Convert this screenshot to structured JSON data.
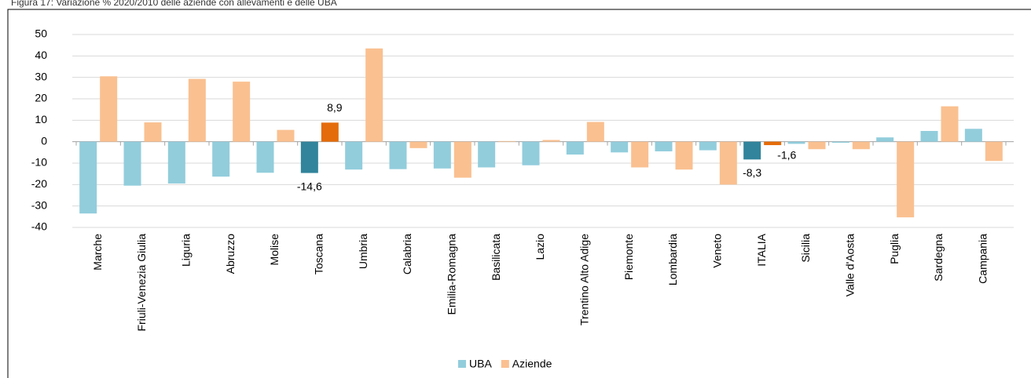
{
  "chart_data": {
    "type": "bar",
    "title": "Figura 17: Variazione % 2020/2010 delle aziende con allevamenti e delle UBA",
    "categories": [
      "Marche",
      "Friuli-Venezia Giulia",
      "Liguria",
      "Abruzzo",
      "Molise",
      "Toscana",
      "Umbria",
      "Calabria",
      "Emilia-Romagna",
      "Basilicata",
      "Lazio",
      "Trentino Alto Adige",
      "Piemonte",
      "Lombardia",
      "Veneto",
      "ITALIA",
      "Sicilia",
      "Valle d'Aosta",
      "Puglia",
      "Sardegna",
      "Campania"
    ],
    "series": [
      {
        "name": "UBA",
        "color": "#92cddc",
        "colors": [
          "#92cddc",
          "#92cddc",
          "#92cddc",
          "#92cddc",
          "#92cddc",
          "#31849b",
          "#92cddc",
          "#92cddc",
          "#92cddc",
          "#92cddc",
          "#92cddc",
          "#92cddc",
          "#92cddc",
          "#92cddc",
          "#92cddc",
          "#31849b",
          "#92cddc",
          "#92cddc",
          "#92cddc",
          "#92cddc",
          "#92cddc"
        ],
        "values": [
          -33.5,
          -20.5,
          -19.5,
          -16.3,
          -14.5,
          -14.6,
          -13,
          -12.8,
          -12.5,
          -12,
          -11,
          -6,
          -5,
          -4.5,
          -4,
          -8.3,
          -1,
          -0.5,
          2,
          5,
          6
        ],
        "value_labels": [
          null,
          null,
          null,
          null,
          null,
          "-14,6",
          null,
          null,
          null,
          null,
          null,
          null,
          null,
          null,
          null,
          "-8,3",
          null,
          null,
          null,
          null,
          null
        ]
      },
      {
        "name": "Aziende",
        "color": "#fac090",
        "colors": [
          "#fac090",
          "#fac090",
          "#fac090",
          "#fac090",
          "#fac090",
          "#e46c0a",
          "#fac090",
          "#fac090",
          "#fac090",
          "#fac090",
          "#fac090",
          "#fac090",
          "#fac090",
          "#fac090",
          "#fac090",
          "#e46c0a",
          "#fac090",
          "#fac090",
          "#fac090",
          "#fac090",
          "#fac090"
        ],
        "values": [
          30.5,
          9,
          29.3,
          28,
          5.5,
          8.9,
          43.5,
          -3,
          -16.8,
          0.3,
          0.8,
          9.2,
          -12,
          -13,
          -20,
          -1.6,
          -3.5,
          -3.5,
          -35.3,
          16.5,
          -9
        ],
        "value_labels": [
          null,
          null,
          null,
          null,
          null,
          "8,9",
          null,
          null,
          null,
          null,
          null,
          null,
          null,
          null,
          null,
          "-1,6",
          null,
          null,
          null,
          null,
          null
        ]
      }
    ],
    "ylim": [
      -40,
      50
    ],
    "yticks": [
      -40,
      -30,
      -20,
      -10,
      0,
      10,
      20,
      30,
      40,
      50
    ],
    "grid": true,
    "legend": "bottom"
  }
}
